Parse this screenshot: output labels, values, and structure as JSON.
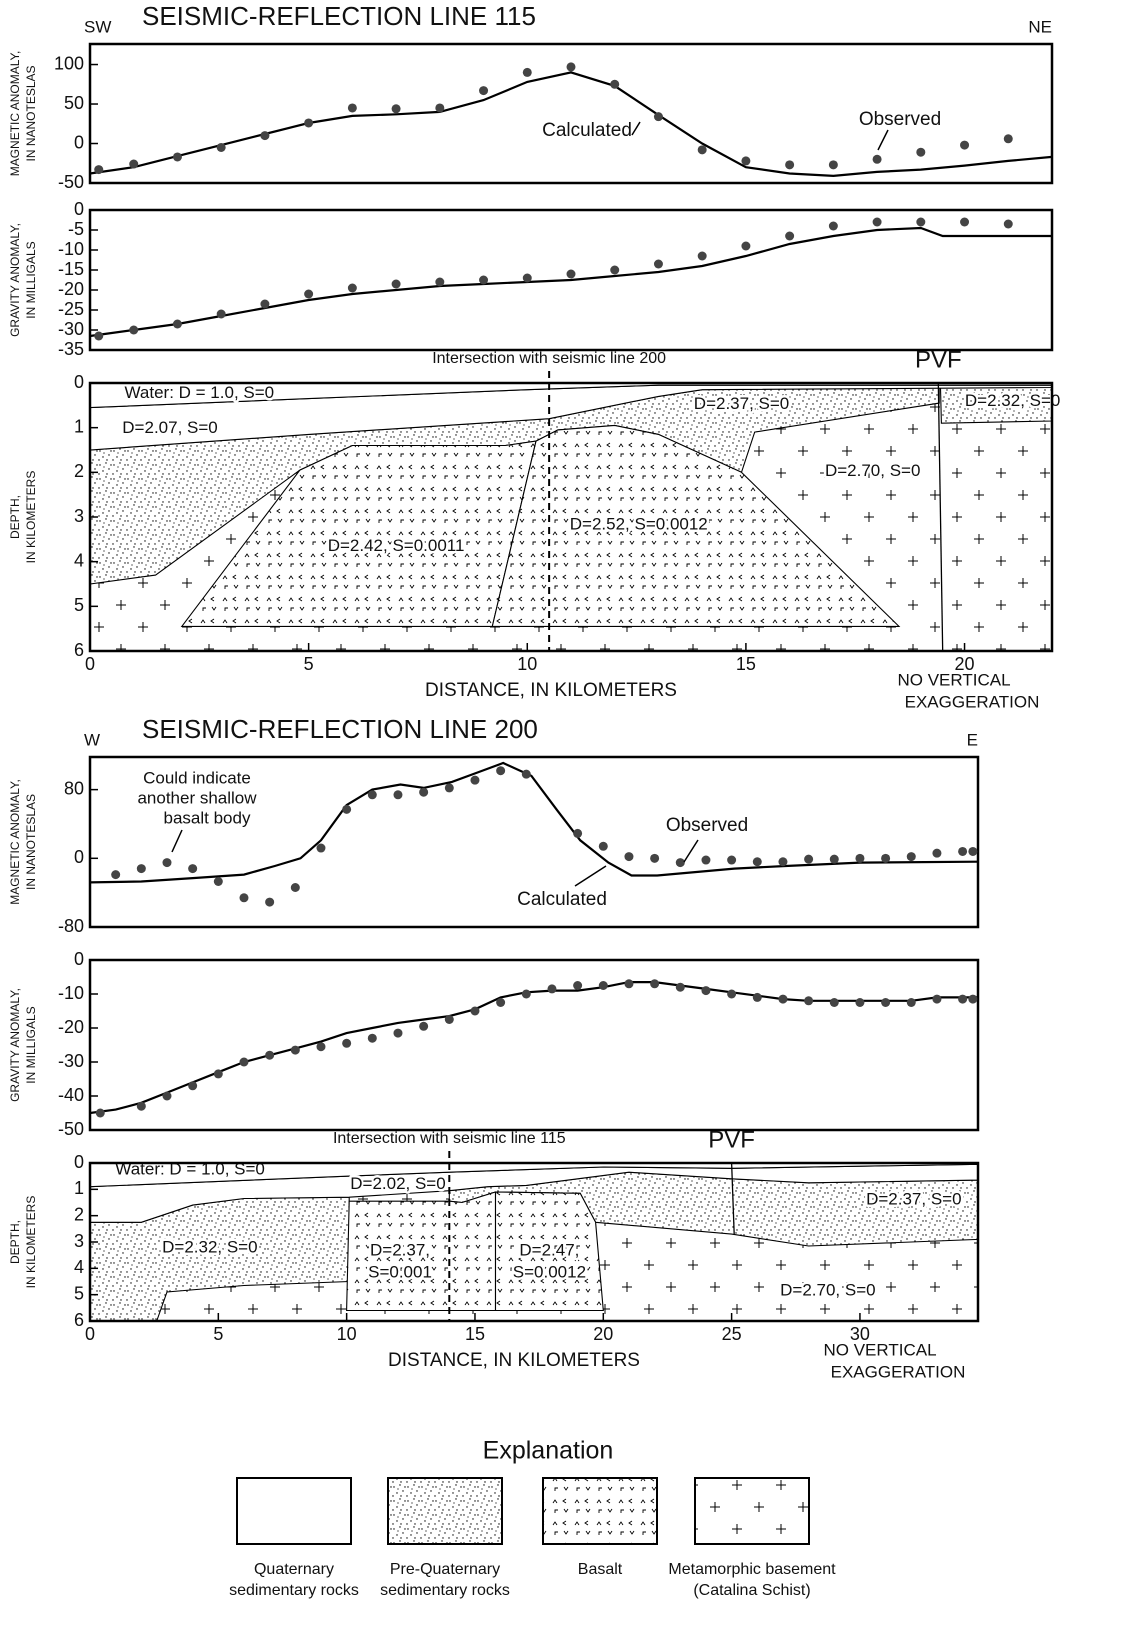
{
  "chart_data": [
    {
      "type": "line",
      "title": "SEISMIC-REFLECTION LINE 115",
      "direction_left": "SW",
      "direction_right": "NE",
      "ylabel": [
        "MAGNETIC ANOMALY,",
        "IN NANOTESLAS"
      ],
      "xlim": [
        0,
        22
      ],
      "ylim": [
        -50,
        126
      ],
      "yticks": [
        100,
        50,
        0,
        -50
      ],
      "series": [
        {
          "name": "Calculated",
          "style": "line",
          "color": "#000",
          "x": [
            0,
            1,
            2,
            3,
            4,
            5,
            6,
            7,
            8,
            9,
            10,
            11,
            12,
            13,
            14,
            15,
            16,
            17,
            18,
            19,
            20,
            21,
            22
          ],
          "values": [
            -38,
            -30,
            -16,
            -2,
            12,
            26,
            35,
            37,
            40,
            55,
            78,
            90,
            73,
            36,
            0,
            -30,
            -38,
            -41,
            -36,
            -33,
            -28,
            -22,
            -17
          ]
        },
        {
          "name": "Observed",
          "style": "points",
          "color": "#444",
          "x": [
            0.2,
            1,
            2,
            3,
            4,
            5,
            6,
            7,
            8,
            9,
            10,
            11,
            12,
            13,
            14,
            15,
            16,
            17,
            18,
            19,
            20,
            21
          ],
          "values": [
            -33,
            -26,
            -17,
            -5,
            10,
            26,
            45,
            44,
            45,
            67,
            90,
            97,
            75,
            34,
            -8,
            -22,
            -27,
            -27,
            -20,
            -11,
            -2,
            6
          ]
        }
      ]
    },
    {
      "type": "line",
      "ylabel": [
        "GRAVITY ANOMALY,",
        "IN MILLIGALS"
      ],
      "xlim": [
        0,
        22
      ],
      "ylim": [
        -35,
        0
      ],
      "yticks": [
        0,
        -5,
        -10,
        -15,
        -20,
        -25,
        -30,
        -35
      ],
      "series": [
        {
          "style": "line",
          "color": "#000",
          "x": [
            0,
            1,
            2,
            3,
            4,
            5,
            6,
            7,
            8,
            9,
            10,
            11,
            12,
            13,
            14,
            15,
            16,
            17,
            18,
            19,
            19.5,
            22
          ],
          "values": [
            -31.5,
            -30,
            -28.5,
            -26.5,
            -24.5,
            -22.5,
            -21,
            -20,
            -19,
            -18.5,
            -18,
            -17.5,
            -16.5,
            -15.5,
            -14,
            -11.5,
            -8.5,
            -6.5,
            -5,
            -4.5,
            -6.5,
            -6.5
          ]
        },
        {
          "style": "points",
          "color": "#444",
          "x": [
            0.2,
            1,
            2,
            3,
            4,
            5,
            6,
            7,
            8,
            9,
            10,
            11,
            12,
            13,
            14,
            15,
            16,
            17,
            18,
            19,
            20,
            21
          ],
          "values": [
            -31.5,
            -30,
            -28.5,
            -26,
            -23.5,
            -21,
            -19.5,
            -18.5,
            -18,
            -17.5,
            -17,
            -16,
            -15,
            -13.5,
            -11.5,
            -9,
            -6.5,
            -4,
            -3,
            -3,
            -3,
            -3.5
          ]
        }
      ]
    },
    {
      "type": "section",
      "ylabel": [
        "DEPTH,",
        "IN KILOMETERS"
      ],
      "xlabel": "DISTANCE, IN KILOMETERS",
      "note": [
        "NO VERTICAL",
        "EXAGGERATION"
      ],
      "xlim": [
        0,
        22
      ],
      "ylim": [
        0,
        6
      ],
      "y_inverted": true,
      "xticks": [
        0,
        5,
        10,
        15,
        20
      ],
      "yticks": [
        0,
        1,
        2,
        3,
        4,
        5,
        6
      ],
      "intersection": {
        "label": "Intersection with seismic line 200",
        "x": 10.5
      },
      "fault": {
        "label": "PVF",
        "x": [
          19.4,
          19.5
        ],
        "y": [
          0,
          6
        ]
      },
      "bodies": [
        {
          "fill": "crosses",
          "label": "D=2.70, S=0",
          "x": [
            0,
            22,
            22,
            0
          ],
          "y": [
            0,
            0,
            6,
            6
          ]
        },
        {
          "fill": "dots",
          "label": "D=2.37, S=0",
          "x": [
            0,
            5,
            10.5,
            13,
            14,
            19.42,
            19.42,
            15.2,
            14.9,
            13,
            12,
            10.7,
            10.2,
            9.5,
            6,
            4.8,
            1.5,
            0
          ],
          "y": [
            1.5,
            1.15,
            0.8,
            0.3,
            0.15,
            0.1,
            0.45,
            1.1,
            2.0,
            1.15,
            0.95,
            1.05,
            1.3,
            1.4,
            1.4,
            1.95,
            4.3,
            4.5
          ]
        },
        {
          "fill": "dots",
          "label": "D=2.32, S=0",
          "x": [
            19.45,
            22,
            22,
            19.47
          ],
          "y": [
            0.1,
            0.1,
            0.85,
            0.9
          ]
        },
        {
          "fill": "white",
          "label": "D=2.07, S=0",
          "x": [
            0,
            5,
            10,
            13,
            22,
            22,
            14,
            13,
            10.5,
            5,
            0
          ],
          "y": [
            0.55,
            0.35,
            0.15,
            0.05,
            0.05,
            0.1,
            0.15,
            0.3,
            0.8,
            1.15,
            1.5
          ]
        },
        {
          "fill": "white",
          "label": "Water: D = 1.0, S=0",
          "x": [
            0,
            22,
            22,
            13,
            10,
            5,
            0
          ],
          "y": [
            0,
            0,
            0.05,
            0.05,
            0.15,
            0.35,
            0.55
          ]
        },
        {
          "fill": "basalt",
          "label": "D=2.42, S=0.0011",
          "x": [
            2.1,
            4.8,
            6,
            9.5,
            10.2,
            9.2
          ],
          "y": [
            5.45,
            1.95,
            1.4,
            1.4,
            1.3,
            5.45
          ]
        },
        {
          "fill": "basalt",
          "label": "D=2.52, S=0.0012",
          "x": [
            10.2,
            10.7,
            12,
            13,
            14.9,
            18.5,
            9.2
          ],
          "y": [
            1.3,
            1.05,
            0.95,
            1.15,
            2.0,
            5.45,
            5.45
          ]
        }
      ]
    },
    {
      "type": "line",
      "title": "SEISMIC-REFLECTION LINE 200",
      "direction_left": "W",
      "direction_right": "E",
      "ylabel": [
        "MAGNETIC ANOMALY,",
        "IN NANOTESLAS"
      ],
      "annotation": [
        "Could indicate",
        "another shallow",
        "basalt body"
      ],
      "xlim": [
        0,
        34.6
      ],
      "ylim": [
        -80,
        118
      ],
      "yticks": [
        80,
        0,
        -80
      ],
      "series": [
        {
          "name": "Calculated",
          "style": "line",
          "color": "#000",
          "x": [
            0,
            2,
            4,
            6,
            7.2,
            8.2,
            9,
            10,
            11,
            12.1,
            13,
            14.1,
            15.1,
            16.1,
            17.2,
            18.2,
            19.1,
            20.2,
            21.1,
            22.1,
            25.1,
            27.1,
            30,
            34.6
          ],
          "values": [
            -28,
            -27,
            -23,
            -19,
            -9,
            0,
            21,
            62,
            80,
            86,
            82,
            89,
            100,
            111,
            96,
            56,
            21,
            -5,
            -20,
            -20,
            -12,
            -9,
            -5,
            -4
          ]
        },
        {
          "name": "Observed",
          "style": "points",
          "color": "#444",
          "x": [
            1,
            2,
            3,
            4,
            5,
            6,
            7,
            8,
            9,
            10,
            11,
            12,
            13,
            14,
            15,
            16,
            17,
            19,
            20,
            21,
            22,
            23,
            24,
            25,
            26,
            27,
            28,
            29,
            30,
            31,
            32,
            33,
            34,
            34.4
          ],
          "values": [
            -19,
            -12,
            -5,
            -12,
            -27,
            -46,
            -51,
            -34,
            12,
            57,
            74,
            74,
            77,
            82,
            91,
            102,
            98,
            29,
            14,
            2,
            0,
            -5,
            -2,
            -2,
            -4,
            -4,
            -1,
            -1,
            0,
            0,
            2,
            6,
            8,
            8
          ]
        }
      ]
    },
    {
      "type": "line",
      "ylabel": [
        "GRAVITY ANOMALY,",
        "IN MILLIGALS"
      ],
      "xlim": [
        0,
        34.6
      ],
      "ylim": [
        -50,
        0
      ],
      "yticks": [
        0,
        -10,
        -20,
        -30,
        -40,
        -50
      ],
      "series": [
        {
          "style": "line",
          "color": "#000",
          "x": [
            0,
            1,
            2,
            3,
            4,
            5,
            6,
            7,
            8,
            9,
            10,
            11,
            12,
            13,
            14,
            15,
            16,
            17,
            18,
            19,
            20,
            21,
            22,
            23,
            24,
            25,
            26,
            27,
            28,
            30,
            32,
            33,
            34.6
          ],
          "values": [
            -45,
            -44,
            -42,
            -39,
            -36,
            -33,
            -30,
            -28,
            -26,
            -24,
            -21.5,
            -20,
            -18.5,
            -17.5,
            -16.5,
            -14.5,
            -11,
            -9.5,
            -9,
            -9,
            -8,
            -6.5,
            -6.5,
            -7.5,
            -8.5,
            -9.5,
            -10.5,
            -11.5,
            -12,
            -12,
            -12,
            -11,
            -11
          ]
        },
        {
          "style": "points",
          "color": "#444",
          "x": [
            0.4,
            2,
            3,
            4,
            5,
            6,
            7,
            8,
            9,
            10,
            11,
            12,
            13,
            14,
            15,
            16,
            17,
            18,
            19,
            20,
            21,
            22,
            23,
            24,
            25,
            26,
            27,
            28,
            29,
            30,
            31,
            32,
            33,
            34,
            34.4
          ],
          "values": [
            -45,
            -43,
            -40,
            -37,
            -33.5,
            -30,
            -28,
            -26.5,
            -25.5,
            -24.5,
            -23,
            -21.5,
            -19.5,
            -17.5,
            -15,
            -12.5,
            -10,
            -8.5,
            -7.5,
            -7.5,
            -7,
            -7,
            -8,
            -9,
            -10,
            -11,
            -11.5,
            -12,
            -12.5,
            -12.5,
            -12.5,
            -12.5,
            -11.5,
            -11.5,
            -11.5
          ]
        }
      ]
    },
    {
      "type": "section",
      "ylabel": [
        "DEPTH,",
        "IN KILOMETERS"
      ],
      "xlabel": "DISTANCE, IN KILOMETERS",
      "note": [
        "NO VERTICAL",
        "EXAGGERATION"
      ],
      "xlim": [
        0,
        34.6
      ],
      "ylim": [
        0,
        6
      ],
      "y_inverted": true,
      "xticks": [
        0,
        5,
        10,
        15,
        20,
        25,
        30
      ],
      "yticks": [
        0,
        1,
        2,
        3,
        4,
        5,
        6
      ],
      "intersection": {
        "label": "Intersection with seismic line 115",
        "x": 14
      },
      "fault": {
        "label": "PVF",
        "x": [
          25,
          25.1
        ],
        "y": [
          0,
          2.7
        ]
      },
      "bodies": [
        {
          "fill": "crosses",
          "label": "D=2.70, S=0",
          "x": [
            0,
            34.6,
            34.6,
            0
          ],
          "y": [
            0,
            0,
            6,
            6
          ]
        },
        {
          "fill": "dots",
          "label": "D=2.32, S=0",
          "x": [
            0,
            2,
            4,
            6,
            10.1,
            10.1,
            6,
            3,
            2.6,
            0
          ],
          "y": [
            2.25,
            2.25,
            1.6,
            1.35,
            1.3,
            4.5,
            4.65,
            4.9,
            6,
            6
          ]
        },
        {
          "fill": "dots",
          "label": "D=2.37, S=0",
          "x": [
            14,
            15.5,
            17,
            21,
            25,
            28,
            34.6,
            34.6,
            28,
            25,
            19.7,
            19.1,
            15.8,
            14.5,
            14
          ],
          "y": [
            1.05,
            0.9,
            0.85,
            0.35,
            0.6,
            0.75,
            0.65,
            2.9,
            3.15,
            2.7,
            2.25,
            1.15,
            1.1,
            1.5,
            1.45
          ]
        },
        {
          "fill": "white",
          "label": "D=2.02, S=0",
          "x": [
            0,
            5,
            10,
            14,
            20,
            25,
            34.6,
            34.6,
            28,
            25,
            21,
            17,
            15.5,
            14,
            10.1,
            6,
            4,
            2,
            0
          ],
          "y": [
            0.9,
            0.7,
            0.5,
            0.35,
            0.15,
            0.2,
            0.05,
            0.65,
            0.75,
            0.6,
            0.35,
            0.85,
            0.9,
            1.05,
            1.3,
            1.35,
            1.6,
            2.25,
            2.25
          ]
        },
        {
          "fill": "white",
          "label": "Water: D = 1.0, S=0",
          "x": [
            0,
            34.6,
            34.6,
            25,
            20,
            14,
            10,
            5,
            0
          ],
          "y": [
            0,
            0,
            0.05,
            0.2,
            0.15,
            0.35,
            0.5,
            0.7,
            0.9
          ]
        },
        {
          "fill": "basalt",
          "label": [
            "D=2.37,",
            "S=0.001"
          ],
          "x": [
            10.1,
            14,
            14.5,
            15.8,
            15.8,
            10
          ],
          "y": [
            1.45,
            1.45,
            1.5,
            1.1,
            5.6,
            5.6
          ]
        },
        {
          "fill": "basalt",
          "label": [
            "D=2.47,",
            "S=0.0012"
          ],
          "x": [
            15.8,
            19.1,
            19.7,
            20,
            15.8
          ],
          "y": [
            1.1,
            1.15,
            2.25,
            5.6,
            5.6
          ]
        }
      ]
    }
  ],
  "explanation": {
    "title": "Explanation",
    "items": [
      {
        "fill": "white",
        "label": [
          "Quaternary",
          "sedimentary rocks"
        ]
      },
      {
        "fill": "dots",
        "label": [
          "Pre-Quaternary",
          "sedimentary rocks"
        ]
      },
      {
        "fill": "basalt",
        "label": [
          "Basalt"
        ]
      },
      {
        "fill": "crosses",
        "label": [
          "Metamorphic basement",
          "(Catalina Schist)"
        ]
      }
    ]
  }
}
